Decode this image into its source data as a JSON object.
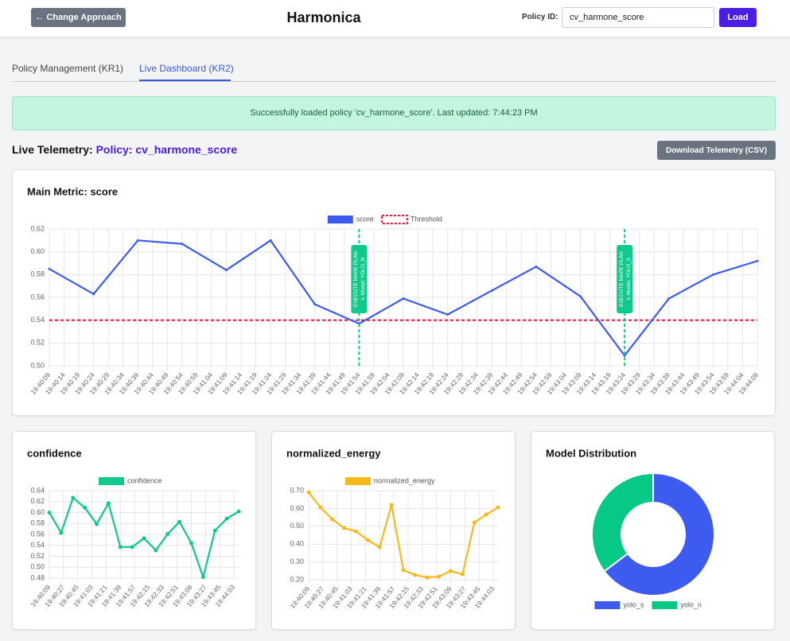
{
  "header": {
    "back_button": "← Change Approach",
    "title": "Harmonica",
    "policy_label": "Policy ID:",
    "policy_input": "cv_harmone_score",
    "load_button": "Load"
  },
  "tabs": [
    "Policy Management (KR1)",
    "Live Dashboard (KR2)"
  ],
  "alert": "Successfully loaded policy 'cv_harmone_score'. Last updated: 7:44:23 PM",
  "telemetry": {
    "label": "Live Telemetry:",
    "policy": "Policy: cv_harmone_score",
    "download_button": "Download Telemetry (CSV)"
  },
  "chart_data": [
    {
      "type": "line",
      "title": "Main Metric: score",
      "x": [
        "19:40:09",
        "19:40:24",
        "19:40:39",
        "19:40:54",
        "19:41:09",
        "19:41:24",
        "19:41:39",
        "19:41:54",
        "19:42:09",
        "19:42:24",
        "19:42:39",
        "19:42:54",
        "19:43:09",
        "19:43:24",
        "19:43:39",
        "19:43:54",
        "19:44:09"
      ],
      "series": [
        {
          "name": "score",
          "color": "#3e5bf0",
          "values": [
            0.585,
            0.563,
            0.61,
            0.607,
            0.584,
            0.61,
            0.554,
            0.537,
            0.559,
            0.545,
            0.566,
            0.587,
            0.561,
            0.509,
            0.559,
            0.58,
            0.592
          ]
        }
      ],
      "threshold": {
        "name": "Threshold",
        "value": 0.54,
        "color": "#f0103c"
      },
      "annotations": [
        {
          "x": "19:41:54",
          "lines": [
            "EXECUTE MAPE PLAN",
            "↳ Model: YOLO_N"
          ],
          "color": "#10c98a"
        },
        {
          "x": "19:43:24",
          "lines": [
            "EXECUTE MAPE PLAN",
            "↳ Model: YOLO_S"
          ],
          "color": "#10c98a"
        }
      ],
      "xlim": [
        "19:40:09",
        "19:44:09"
      ],
      "xticks": [
        "19:40:09",
        "19:40:14",
        "19:40:19",
        "19:40:24",
        "19:40:29",
        "19:40:34",
        "19:40:39",
        "19:40:44",
        "19:40:49",
        "19:40:54",
        "19:40:59",
        "19:41:04",
        "19:41:09",
        "19:41:14",
        "19:41:19",
        "19:41:24",
        "19:41:29",
        "19:41:34",
        "19:41:39",
        "19:41:44",
        "19:41:49",
        "19:41:54",
        "19:41:59",
        "19:42:04",
        "19:42:09",
        "19:42:14",
        "19:42:19",
        "19:42:24",
        "19:42:29",
        "19:42:34",
        "19:42:39",
        "19:42:44",
        "19:42:49",
        "19:42:54",
        "19:42:59",
        "19:43:04",
        "19:43:09",
        "19:43:14",
        "19:43:19",
        "19:43:24",
        "19:43:29",
        "19:43:34",
        "19:43:39",
        "19:43:44",
        "19:43:49",
        "19:43:54",
        "19:43:59",
        "19:44:04",
        "19:44:09"
      ],
      "ylim": [
        0.5,
        0.62
      ],
      "yticks": [
        {
          "value": 0.5,
          "label": "0.50"
        },
        0.52,
        0.54,
        0.56,
        0.58,
        {
          "value": 0.6,
          "label": "0.60"
        },
        0.62
      ],
      "grid": true,
      "legend": "top"
    },
    {
      "type": "line",
      "title": "confidence",
      "x": [
        "19:40:09",
        "19:40:24",
        "19:40:39",
        "19:40:54",
        "19:41:09",
        "19:41:24",
        "19:41:39",
        "19:41:54",
        "19:42:09",
        "19:42:24",
        "19:42:39",
        "19:42:54",
        "19:43:09",
        "19:43:24",
        "19:43:39",
        "19:43:54",
        "19:44:09"
      ],
      "series": [
        {
          "name": "confidence",
          "color": "#10c98a",
          "values": [
            0.6,
            0.563,
            0.627,
            0.609,
            0.579,
            0.617,
            0.537,
            0.537,
            0.553,
            0.531,
            0.561,
            0.583,
            0.544,
            0.482,
            0.567,
            0.589,
            0.602
          ]
        }
      ],
      "xlim": [
        "19:40:09",
        "19:44:09"
      ],
      "xticks": [
        "19:40:09",
        "19:40:27",
        "19:40:45",
        "19:41:03",
        "19:41:21",
        "19:41:39",
        "19:41:57",
        "19:42:15",
        "19:42:33",
        "19:42:51",
        "19:43:09",
        "19:43:27",
        "19:43:45",
        "19:44:03"
      ],
      "ylim": [
        0.48,
        0.64
      ],
      "yticks": [
        0.48,
        {
          "value": 0.5,
          "label": "0.50"
        },
        0.52,
        0.54,
        0.56,
        0.58,
        {
          "value": 0.6,
          "label": "0.60"
        },
        0.62,
        0.64
      ],
      "grid": true,
      "legend": "top"
    },
    {
      "type": "line",
      "title": "normalized_energy",
      "x": [
        "19:40:09",
        "19:40:24",
        "19:40:39",
        "19:40:54",
        "19:41:09",
        "19:41:24",
        "19:41:39",
        "19:41:54",
        "19:42:09",
        "19:42:24",
        "19:42:39",
        "19:42:54",
        "19:43:09",
        "19:43:24",
        "19:43:39",
        "19:43:54",
        "19:44:09"
      ],
      "series": [
        {
          "name": "normalized_energy",
          "color": "#f5b91e",
          "values": [
            0.691,
            0.606,
            0.539,
            0.49,
            0.472,
            0.423,
            0.383,
            0.62,
            0.254,
            0.227,
            0.213,
            0.218,
            0.249,
            0.231,
            0.521,
            0.566,
            0.606
          ]
        }
      ],
      "xlim": [
        "19:40:09",
        "19:44:09"
      ],
      "xticks": [
        "19:40:09",
        "19:40:27",
        "19:40:45",
        "19:41:03",
        "19:41:21",
        "19:41:39",
        "19:41:57",
        "19:42:15",
        "19:42:33",
        "19:42:51",
        "19:43:09",
        "19:43:27",
        "19:43:45",
        "19:44:03"
      ],
      "ylim": [
        0.2,
        0.7
      ],
      "yticks": [
        {
          "value": 0.2,
          "label": "0.20"
        },
        {
          "value": 0.3,
          "label": "0.30"
        },
        {
          "value": 0.4,
          "label": "0.40"
        },
        {
          "value": 0.5,
          "label": "0.50"
        },
        {
          "value": 0.6,
          "label": "0.60"
        },
        {
          "value": 0.7,
          "label": "0.70"
        }
      ],
      "grid": true,
      "legend": "top"
    },
    {
      "type": "doughnut",
      "title": "Model Distribution",
      "categories": [
        "yolo_s",
        "yolo_n"
      ],
      "values": [
        11,
        6
      ],
      "colors": [
        "#3e5bf0",
        "#06c985"
      ],
      "legend": "bottom"
    }
  ]
}
